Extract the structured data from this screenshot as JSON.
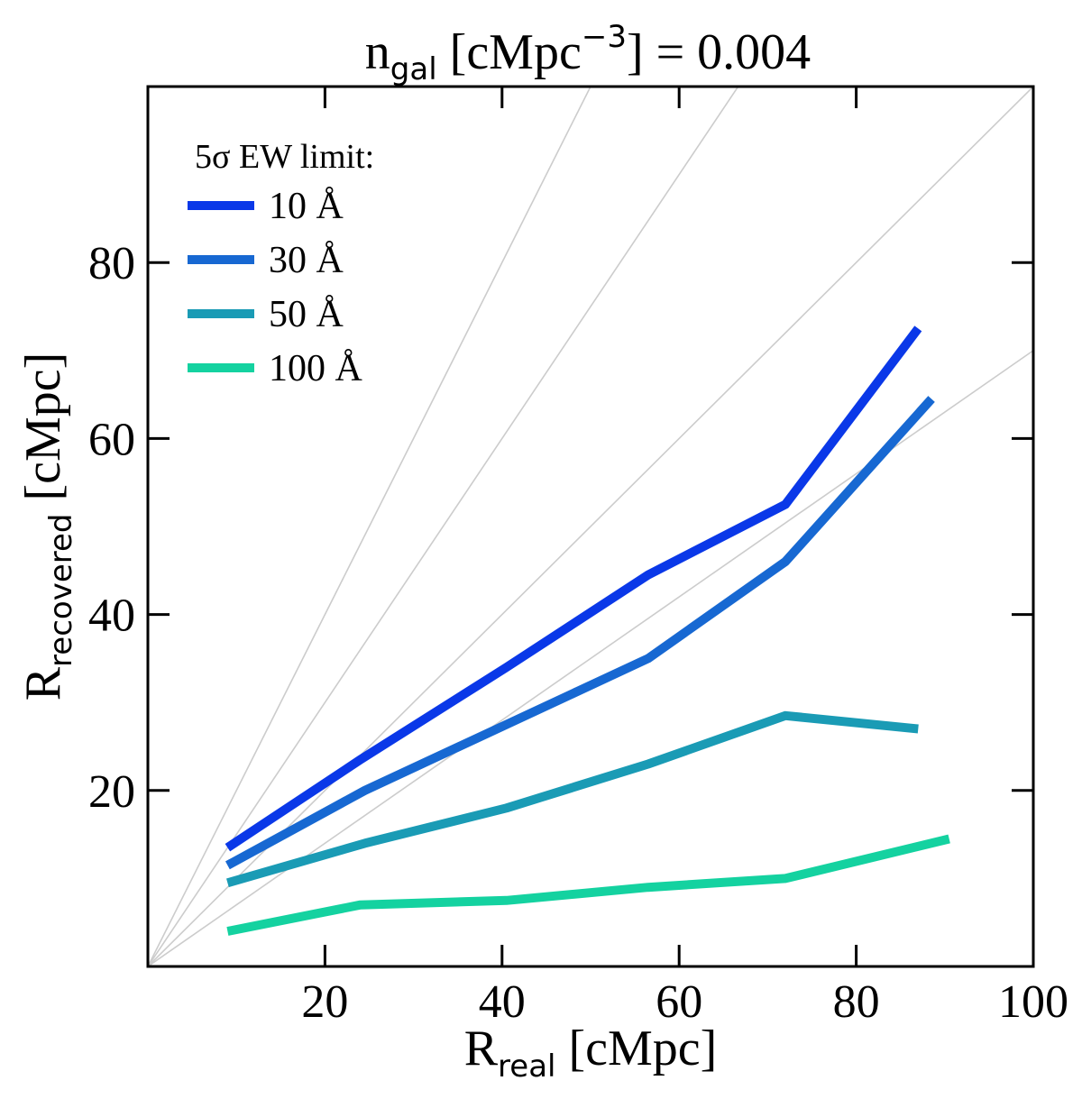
{
  "chart_data": {
    "type": "line",
    "title": {
      "main": "n",
      "sub": "gal",
      "rest": " [cMpc",
      "sup": "−3",
      "end": "] = 0.004"
    },
    "xlabel": {
      "main": "R",
      "sub": "real",
      "rest": " [cMpc]"
    },
    "ylabel": {
      "main": "R",
      "sub": "recovered",
      "rest": " [cMpc]"
    },
    "xlim": [
      0,
      100
    ],
    "ylim": [
      0,
      100
    ],
    "xticks": [
      20,
      40,
      60,
      80,
      100
    ],
    "yticks": [
      20,
      40,
      60,
      80
    ],
    "xtick_labels": [
      "20",
      "40",
      "60",
      "80",
      "100"
    ],
    "ytick_labels": [
      "20",
      "40",
      "60",
      "80"
    ],
    "reference_line_slopes": [
      2,
      1.5,
      1,
      0.7
    ],
    "legend": {
      "title": "5σ EW limit:",
      "placement": "upper-left"
    },
    "series": [
      {
        "name": "10 Å",
        "color": "#0a38e8",
        "x": [
          9,
          24,
          40.5,
          56.5,
          72,
          87
        ],
        "y": [
          13.5,
          23.5,
          34,
          44.5,
          52.5,
          72.5
        ]
      },
      {
        "name": "30 Å",
        "color": "#1768d2",
        "x": [
          9,
          24.5,
          40.5,
          56.5,
          72,
          88.5
        ],
        "y": [
          11.5,
          20,
          27.5,
          35,
          46,
          64.5
        ]
      },
      {
        "name": "50 Å",
        "color": "#1a9bb5",
        "x": [
          9,
          24.5,
          40.5,
          56.5,
          72,
          87
        ],
        "y": [
          9.5,
          14,
          18,
          23,
          28.5,
          27
        ]
      },
      {
        "name": "100 Å",
        "color": "#14d2a0",
        "x": [
          9,
          24,
          40.5,
          56.5,
          72,
          90.5
        ],
        "y": [
          4,
          7,
          7.5,
          9,
          10,
          14.5
        ]
      }
    ]
  }
}
